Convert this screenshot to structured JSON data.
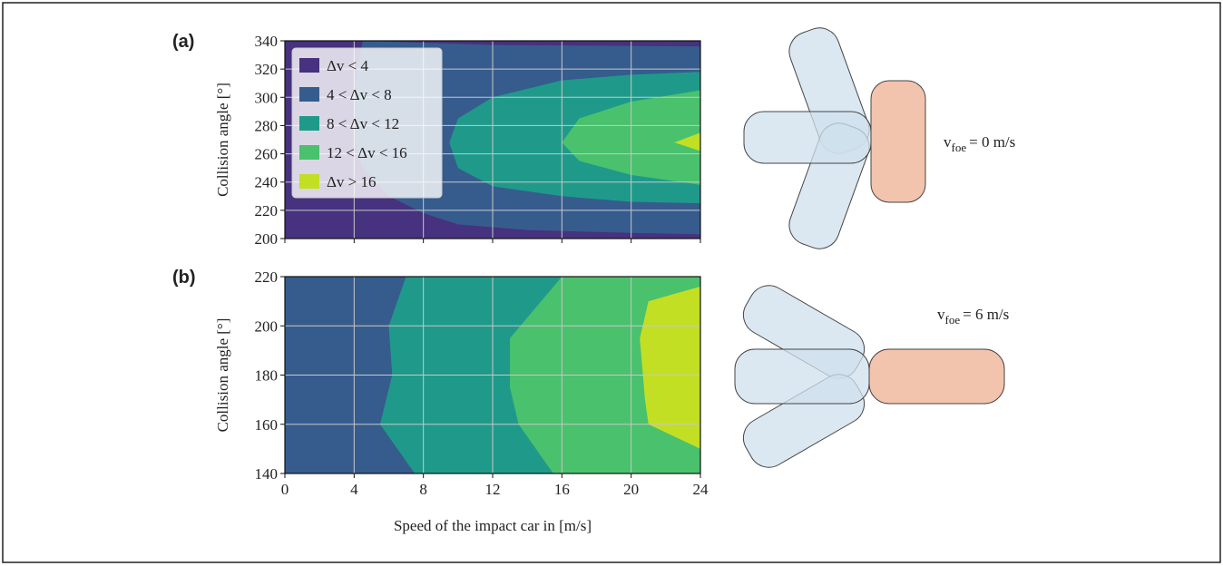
{
  "chart_data": [
    {
      "type": "contour",
      "label": "(a)",
      "ylabel": "Collision angle [°]",
      "xlim": [
        0,
        24
      ],
      "ylim": [
        200,
        340
      ],
      "xticks": [
        0,
        4,
        8,
        12,
        16,
        20,
        24
      ],
      "yticks": [
        200,
        220,
        240,
        260,
        280,
        300,
        320,
        340
      ],
      "grid": true,
      "legend": "upper left",
      "series": [
        {
          "name": "Δv < 4",
          "color": "#46327e",
          "x": [
            0,
            24,
            24,
            0
          ],
          "y": [
            200,
            200,
            340,
            340
          ]
        },
        {
          "name": "4 < Δv < 8",
          "color": "#365c8d",
          "x": [
            4.5,
            12,
            24,
            24,
            20,
            14,
            10,
            8,
            6,
            4.5,
            4,
            4,
            4.2
          ],
          "y": [
            340,
            337,
            336,
            203,
            204,
            206,
            210,
            218,
            230,
            250,
            270,
            300,
            320
          ]
        },
        {
          "name": "8 < Δv < 12",
          "color": "#1f9a8a",
          "x": [
            24,
            20,
            16,
            12,
            10,
            9.5,
            10,
            12,
            16,
            20,
            24
          ],
          "y": [
            318,
            316,
            312,
            300,
            285,
            268,
            250,
            237,
            230,
            226,
            225
          ]
        },
        {
          "name": "12 < Δv < 16",
          "color": "#4ac16d",
          "x": [
            24,
            20,
            17,
            16,
            17,
            20,
            24
          ],
          "y": [
            305,
            297,
            285,
            268,
            255,
            245,
            238
          ]
        },
        {
          "name": "Δv > 16",
          "color": "#c2df23",
          "x": [
            24,
            22.5,
            24
          ],
          "y": [
            275,
            268,
            262
          ]
        }
      ],
      "annotation": {
        "v": "v",
        "sub": "foe",
        "rest": "= 0 m/s"
      }
    },
    {
      "type": "contour",
      "label": "(b)",
      "ylabel": "Collision angle [°]",
      "xlabel": "Speed of the impact car in [m/s]",
      "xlim": [
        0,
        24
      ],
      "ylim": [
        140,
        220
      ],
      "xticks": [
        0,
        4,
        8,
        12,
        16,
        20,
        24
      ],
      "yticks": [
        140,
        160,
        180,
        200,
        220
      ],
      "grid": true,
      "series": [
        {
          "color": "#365c8d",
          "x": [
            0,
            24,
            24,
            0
          ],
          "y": [
            140,
            140,
            220,
            220
          ]
        },
        {
          "color": "#1f9a8a",
          "x": [
            7,
            6,
            6.2,
            5.5,
            7.5,
            24,
            24
          ],
          "y": [
            220,
            200,
            180,
            160,
            140,
            140,
            220
          ]
        },
        {
          "color": "#4ac16d",
          "x": [
            16,
            13,
            13,
            13.5,
            15.5,
            24,
            24
          ],
          "y": [
            220,
            195,
            175,
            160,
            140,
            140,
            220
          ]
        },
        {
          "color": "#c2df23",
          "x": [
            24,
            21,
            20.5,
            20.8,
            21,
            24
          ],
          "y": [
            216,
            210,
            195,
            170,
            160,
            150
          ]
        }
      ],
      "annotation": {
        "v": "v",
        "sub": "foe",
        "rest": "= 6 m/s"
      }
    }
  ]
}
